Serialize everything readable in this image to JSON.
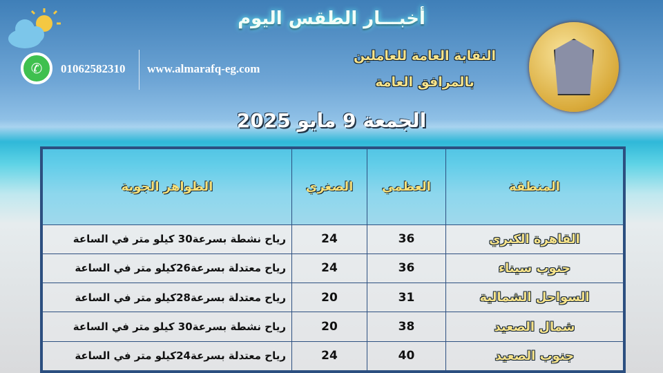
{
  "header": {
    "title": "أخبـــار الطقس اليوم",
    "union_line1": "النقابة العامة للعاملين",
    "union_line2": "بالمرافق العامة",
    "date": "الجمعة 9 مايو 2025",
    "phone": "01062582310",
    "website": "www.almarafq-eg.com"
  },
  "icons": {
    "weather": "sun-cloud-icon",
    "whatsapp": "whatsapp-icon",
    "logo": "union-logo"
  },
  "table": {
    "headers": [
      "المنطقة",
      "العظمي",
      "الصغري",
      "الظواهر الجوية"
    ],
    "rows": [
      {
        "region": "القاهرة الكبري",
        "max": "36",
        "min": "24",
        "desc": "رياح نشطة بسرعة30 كيلو متر في الساعة"
      },
      {
        "region": "جنوب سيناء",
        "max": "36",
        "min": "24",
        "desc": "رياح معتدلة بسرعة26كيلو متر في الساعة"
      },
      {
        "region": "السواحل الشمالية",
        "max": "31",
        "min": "20",
        "desc": "رياح معتدلة بسرعة28كيلو متر في الساعة"
      },
      {
        "region": "شمال الصعيد",
        "max": "38",
        "min": "20",
        "desc": "رياح نشطة بسرعة30 كيلو متر في الساعة"
      },
      {
        "region": "جنوب الصعيد",
        "max": "40",
        "min": "24",
        "desc": "رياح معتدلة بسرعة24كيلو متر في الساعة"
      }
    ]
  }
}
